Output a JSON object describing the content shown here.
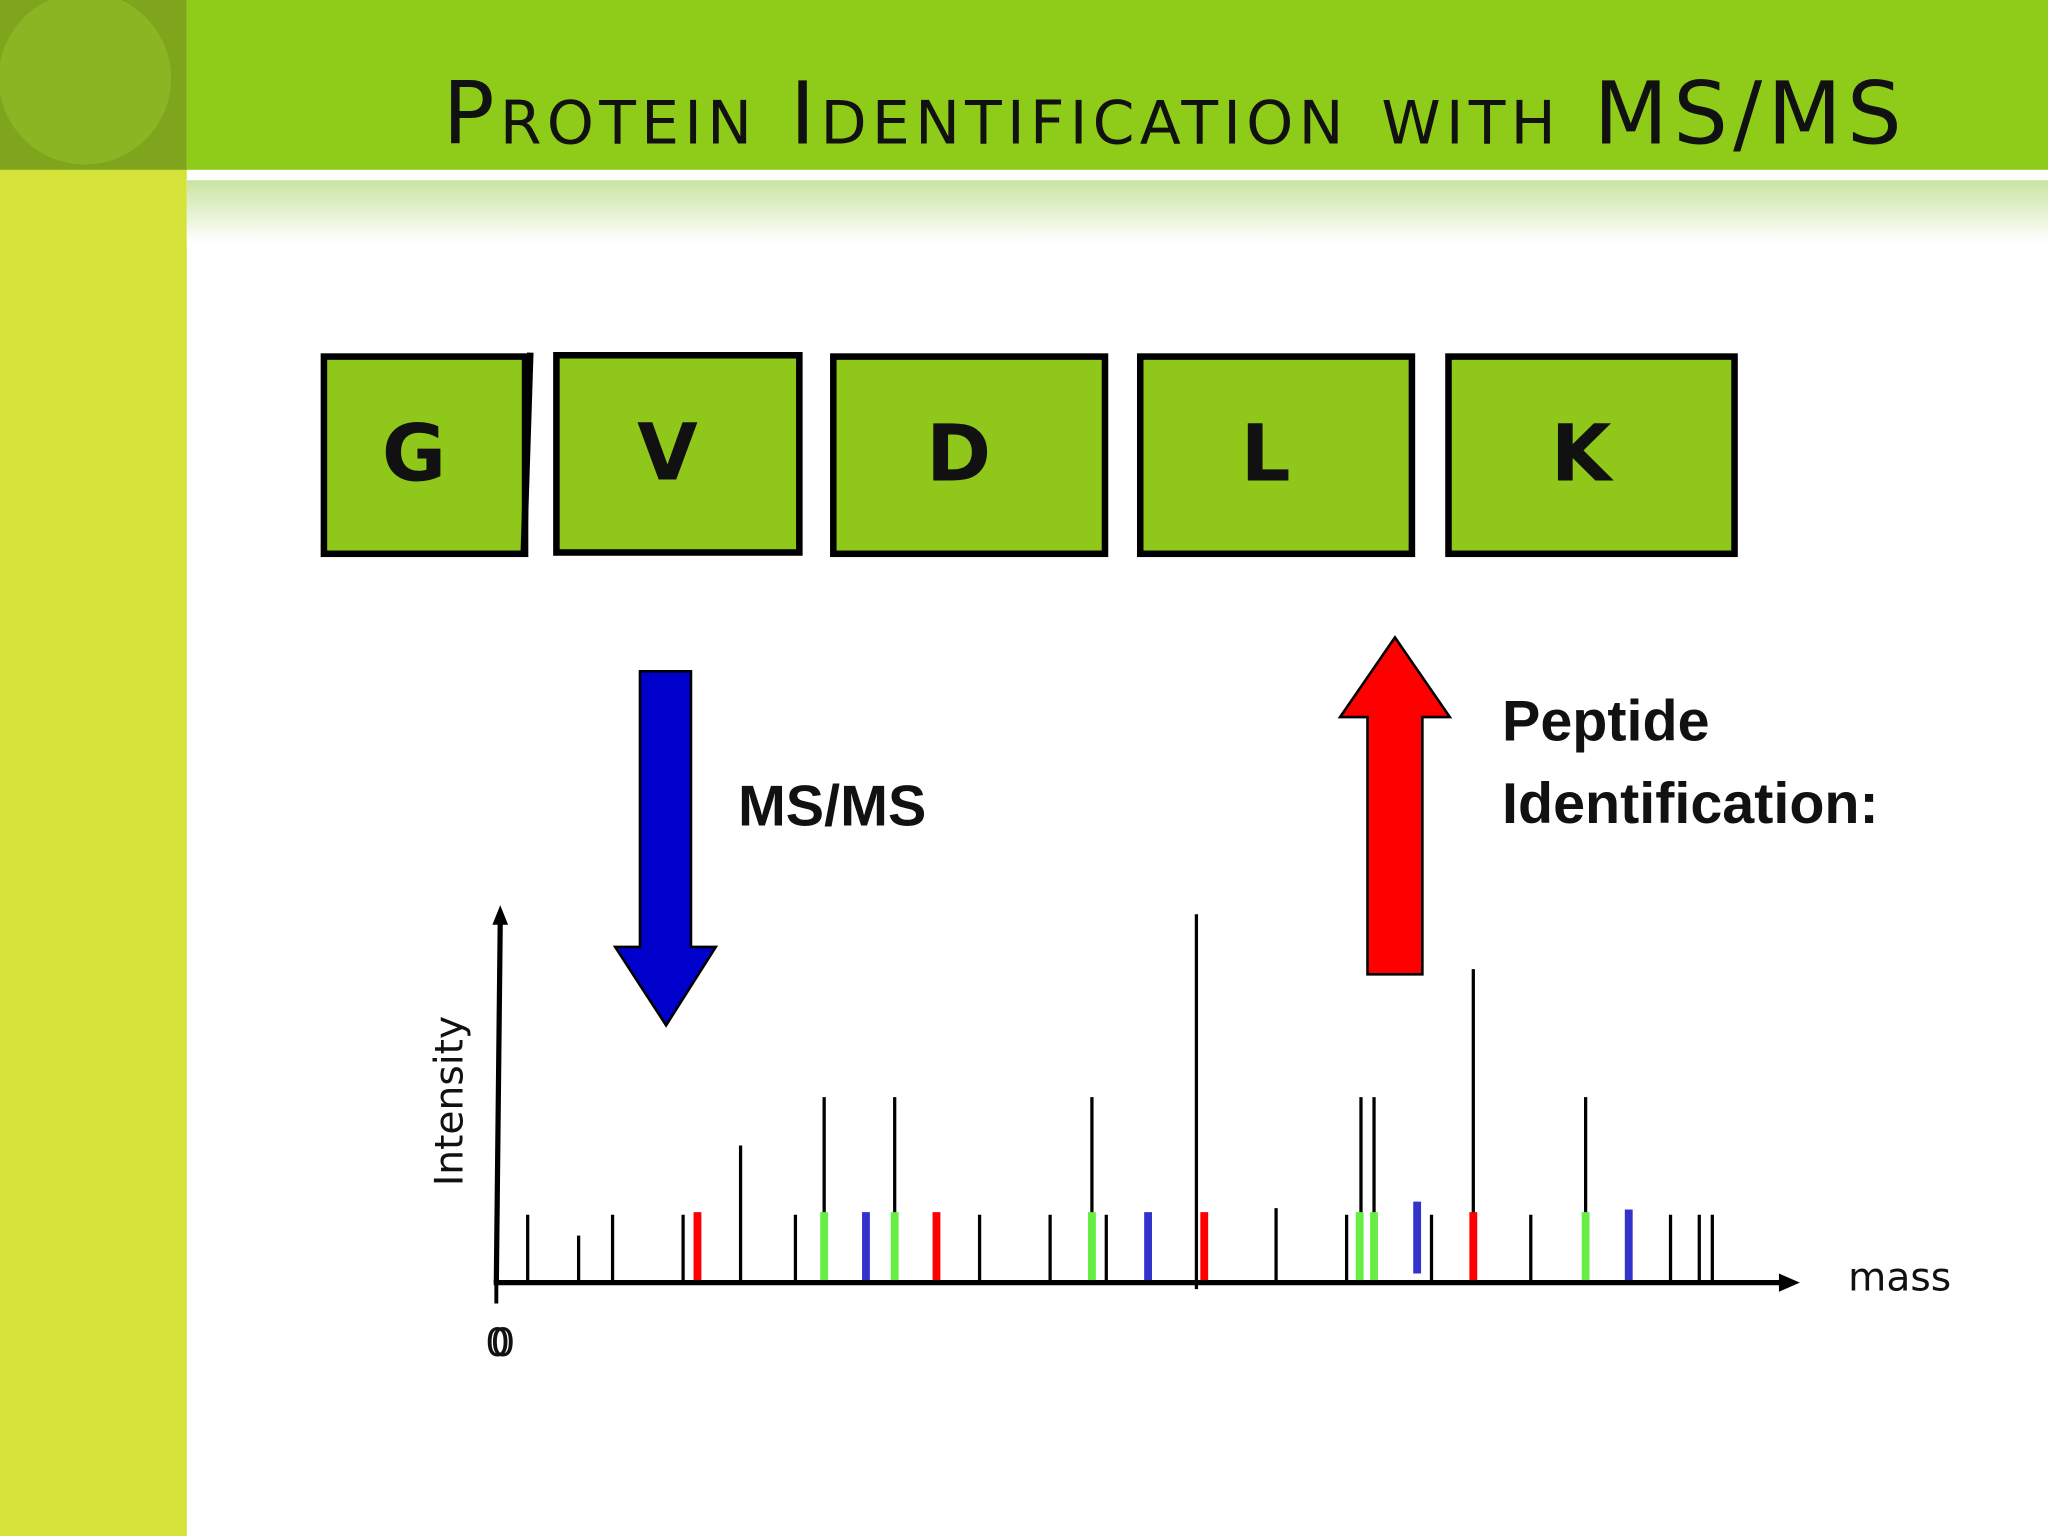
{
  "title": "Protein Identification with MS/MS",
  "residues": [
    "G",
    "V",
    "D",
    "L",
    "K"
  ],
  "labels": {
    "ms_ms": "MS/MS",
    "peptide_line1": "Peptide",
    "peptide_line2": "Identification:"
  },
  "axis": {
    "y_label": "Intensity",
    "x_label": "mass",
    "origin": [
      "0",
      "0"
    ]
  }
}
